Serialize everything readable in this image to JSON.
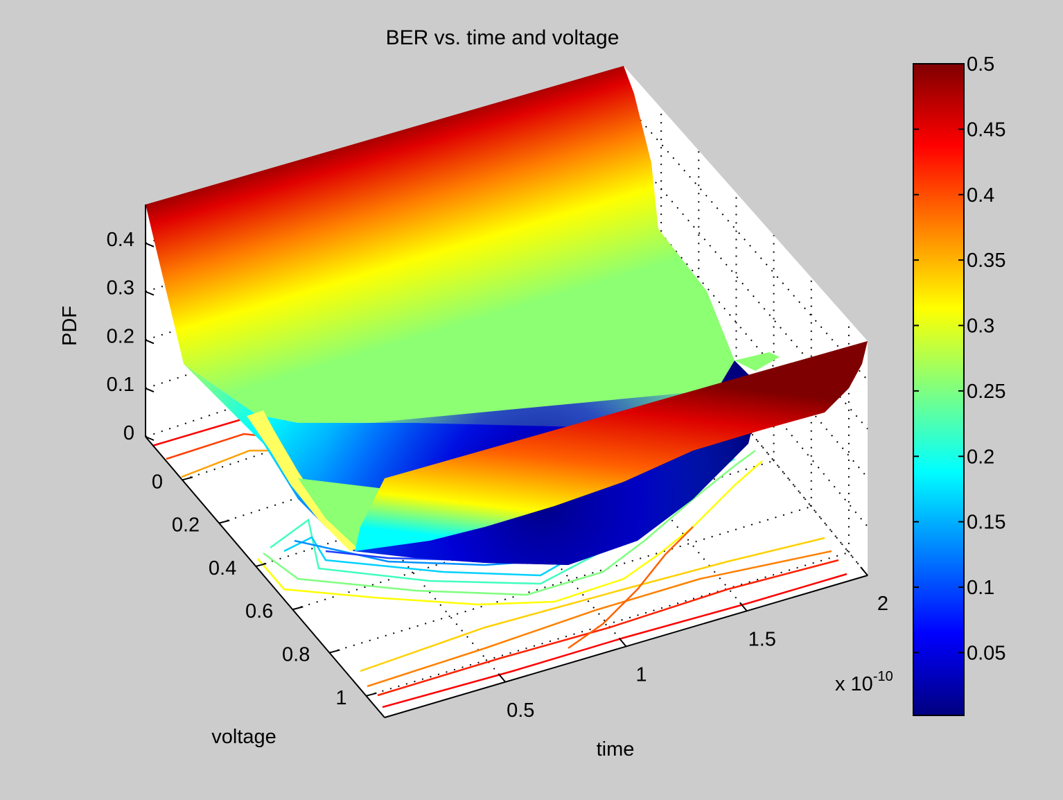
{
  "chart_data": {
    "type": "surface3d",
    "title": "BER vs. time and voltage",
    "xlabel": "time",
    "ylabel": "voltage",
    "zlabel": "PDF",
    "x_exponent_label": "x 10",
    "x_exponent_power": "-10",
    "xlim": [
      0,
      2e-10
    ],
    "ylim": [
      -0.2,
      1.1
    ],
    "zlim": [
      0,
      0.48
    ],
    "x_ticks": [
      {
        "value": 5e-11,
        "label": "0.5"
      },
      {
        "value": 1e-10,
        "label": "1"
      },
      {
        "value": 1.5e-10,
        "label": "1.5"
      },
      {
        "value": 2e-10,
        "label": "2"
      }
    ],
    "y_ticks": [
      {
        "value": 0,
        "label": "0"
      },
      {
        "value": 0.2,
        "label": "0.2"
      },
      {
        "value": 0.4,
        "label": "0.4"
      },
      {
        "value": 0.6,
        "label": "0.6"
      },
      {
        "value": 0.8,
        "label": "0.8"
      },
      {
        "value": 1.0,
        "label": "1"
      }
    ],
    "z_ticks": [
      {
        "value": 0,
        "label": "0"
      },
      {
        "value": 0.1,
        "label": "0.1"
      },
      {
        "value": 0.2,
        "label": "0.2"
      },
      {
        "value": 0.3,
        "label": "0.3"
      },
      {
        "value": 0.4,
        "label": "0.4"
      }
    ],
    "grid": true,
    "colormap": "jet",
    "colorbar": {
      "position": "right",
      "clim": [
        0.002,
        0.5
      ],
      "ticks": [
        {
          "value": 0.05,
          "label": "0.05"
        },
        {
          "value": 0.1,
          "label": "0.1"
        },
        {
          "value": 0.15,
          "label": "0.15"
        },
        {
          "value": 0.2,
          "label": "0.2"
        },
        {
          "value": 0.25,
          "label": "0.25"
        },
        {
          "value": 0.3,
          "label": "0.3"
        },
        {
          "value": 0.35,
          "label": "0.35"
        },
        {
          "value": 0.4,
          "label": "0.4"
        },
        {
          "value": 0.45,
          "label": "0.45"
        },
        {
          "value": 0.5,
          "label": "0.5"
        }
      ]
    },
    "contour_levels": [
      0.05,
      0.1,
      0.15,
      0.2,
      0.25,
      0.3,
      0.35,
      0.4,
      0.45
    ],
    "colors": {
      "background": "#cccccc",
      "axes_face": "#ffffff"
    }
  }
}
